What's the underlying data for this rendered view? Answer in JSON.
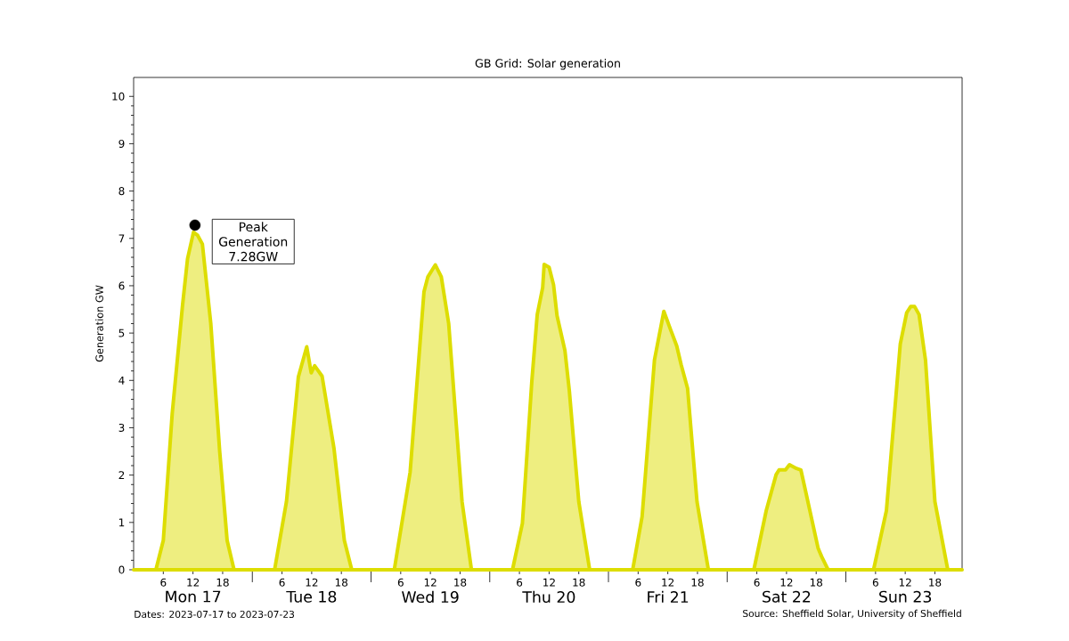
{
  "chart_data": {
    "type": "area",
    "title": "GB Grid: Solar generation",
    "ylabel": "Generation GW",
    "xlim": [
      "2023-07-17T00:00",
      "2023-07-23T23:30"
    ],
    "ylim": [
      0,
      10.4
    ],
    "xticks": [
      {
        "value": "2023-07-17T06:00",
        "label": "6"
      },
      {
        "value": "2023-07-17T12:00",
        "label": "12"
      },
      {
        "value": "2023-07-17T18:00",
        "label": "18"
      },
      {
        "value": "2023-07-18T00:00",
        "label": null
      },
      {
        "value": "2023-07-18T06:00",
        "label": "6"
      },
      {
        "value": "2023-07-18T12:00",
        "label": "12"
      },
      {
        "value": "2023-07-18T18:00",
        "label": "18"
      },
      {
        "value": "2023-07-19T00:00",
        "label": null
      },
      {
        "value": "2023-07-19T06:00",
        "label": "6"
      },
      {
        "value": "2023-07-19T12:00",
        "label": "12"
      },
      {
        "value": "2023-07-19T18:00",
        "label": "18"
      },
      {
        "value": "2023-07-20T00:00",
        "label": null
      },
      {
        "value": "2023-07-20T06:00",
        "label": "6"
      },
      {
        "value": "2023-07-20T12:00",
        "label": "12"
      },
      {
        "value": "2023-07-20T18:00",
        "label": "18"
      },
      {
        "value": "2023-07-21T00:00",
        "label": null
      },
      {
        "value": "2023-07-21T06:00",
        "label": "6"
      },
      {
        "value": "2023-07-21T12:00",
        "label": "12"
      },
      {
        "value": "2023-07-21T18:00",
        "label": "18"
      },
      {
        "value": "2023-07-22T00:00",
        "label": null
      },
      {
        "value": "2023-07-22T06:00",
        "label": "6"
      },
      {
        "value": "2023-07-22T12:00",
        "label": "12"
      },
      {
        "value": "2023-07-22T18:00",
        "label": "18"
      },
      {
        "value": "2023-07-23T00:00",
        "label": null
      },
      {
        "value": "2023-07-23T06:00",
        "label": "6"
      },
      {
        "value": "2023-07-23T12:00",
        "label": "12"
      },
      {
        "value": "2023-07-23T18:00",
        "label": "18"
      }
    ],
    "yticks": [
      0,
      1,
      2,
      3,
      4,
      5,
      6,
      7,
      8,
      9,
      10
    ],
    "series": [
      {
        "color": "#dddd00",
        "x": [
          "2023-07-17T00:00",
          "2023-07-17T04:30",
          "2023-07-17T06:00",
          "2023-07-17T07:48",
          "2023-07-17T09:54",
          "2023-07-17T10:54",
          "2023-07-17T12:06",
          "2023-07-17T12:54",
          "2023-07-17T13:54",
          "2023-07-17T15:36",
          "2023-07-17T17:24",
          "2023-07-17T18:54",
          "2023-07-17T20:18",
          "2023-07-18T04:30",
          "2023-07-18T06:54",
          "2023-07-18T09:18",
          "2023-07-18T11:00",
          "2023-07-18T11:54",
          "2023-07-18T12:36",
          "2023-07-18T14:06",
          "2023-07-18T16:30",
          "2023-07-18T18:36",
          "2023-07-18T20:06",
          "2023-07-19T04:42",
          "2023-07-19T07:54",
          "2023-07-19T10:42",
          "2023-07-19T11:30",
          "2023-07-19T13:00",
          "2023-07-19T14:12",
          "2023-07-19T15:42",
          "2023-07-19T18:24",
          "2023-07-19T20:18",
          "2023-07-20T04:36",
          "2023-07-20T06:36",
          "2023-07-20T08:30",
          "2023-07-20T09:36",
          "2023-07-20T10:42",
          "2023-07-20T11:00",
          "2023-07-20T12:00",
          "2023-07-20T12:54",
          "2023-07-20T13:36",
          "2023-07-20T15:12",
          "2023-07-20T16:06",
          "2023-07-20T18:00",
          "2023-07-20T20:12",
          "2023-07-21T04:54",
          "2023-07-21T06:48",
          "2023-07-21T09:18",
          "2023-07-21T11:12",
          "2023-07-21T12:30",
          "2023-07-21T13:48",
          "2023-07-21T14:42",
          "2023-07-21T16:00",
          "2023-07-21T17:54",
          "2023-07-21T20:12",
          "2023-07-22T05:24",
          "2023-07-22T07:54",
          "2023-07-22T09:54",
          "2023-07-22T10:30",
          "2023-07-22T11:48",
          "2023-07-22T12:36",
          "2023-07-22T14:00",
          "2023-07-22T14:54",
          "2023-07-22T15:54",
          "2023-07-22T18:24",
          "2023-07-22T19:06",
          "2023-07-22T20:24",
          "2023-07-23T05:36",
          "2023-07-23T08:12",
          "2023-07-23T11:00",
          "2023-07-23T12:18",
          "2023-07-23T13:06",
          "2023-07-23T13:54",
          "2023-07-23T14:48",
          "2023-07-23T16:06",
          "2023-07-23T18:00",
          "2023-07-23T20:36",
          "2023-07-23T23:30"
        ],
        "values": [
          0,
          0,
          0.62,
          3.3,
          5.6,
          6.57,
          7.13,
          7.07,
          6.88,
          5.2,
          2.5,
          0.62,
          0,
          0,
          1.44,
          4.07,
          4.71,
          4.16,
          4.31,
          4.09,
          2.57,
          0.62,
          0,
          0,
          2.06,
          5.87,
          6.19,
          6.44,
          6.19,
          5.2,
          1.44,
          0,
          0,
          0.98,
          3.97,
          5.39,
          5.96,
          6.45,
          6.39,
          6.02,
          5.37,
          4.63,
          3.77,
          1.44,
          0,
          0,
          1.12,
          4.43,
          5.46,
          5.09,
          4.73,
          4.33,
          3.83,
          1.44,
          0,
          0,
          1.25,
          2.01,
          2.11,
          2.11,
          2.22,
          2.14,
          2.11,
          1.64,
          0.45,
          0.28,
          0,
          0,
          1.25,
          4.77,
          5.43,
          5.56,
          5.56,
          5.39,
          4.43,
          1.44,
          0,
          0
        ]
      },
      {
        "type": "scatter",
        "color": "#000000",
        "x": [
          "2023-07-17T12:24"
        ],
        "values": [
          7.28
        ]
      }
    ],
    "annotations": [
      {
        "text": "Peak Generation 7.28GW",
        "x": "2023-07-17T12:24",
        "y": 7.28
      },
      {
        "text": "Mon 17",
        "x": "2023-07-17T12:00"
      },
      {
        "text": "Tue 18",
        "x": "2023-07-18T12:00"
      },
      {
        "text": "Wed 19",
        "x": "2023-07-19T12:00"
      },
      {
        "text": "Thu 20",
        "x": "2023-07-20T12:00"
      },
      {
        "text": "Fri 21",
        "x": "2023-07-21T12:00"
      },
      {
        "text": "Sat 22",
        "x": "2023-07-22T12:00"
      },
      {
        "text": "Sun 23",
        "x": "2023-07-23T12:00"
      },
      "Dates: 2023-07-17 to 2023-07-23",
      "Source: Sheffield Solar, University of Sheffield"
    ]
  }
}
